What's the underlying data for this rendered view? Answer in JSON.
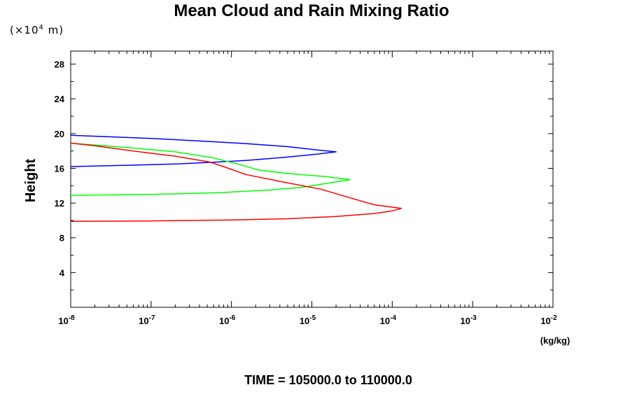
{
  "chart_data": {
    "type": "line",
    "title": "Mean Cloud and Rain Mixing Ratio",
    "y_unit": "(×10",
    "y_unit_exp": "4",
    "y_unit_tail": " m)",
    "ylabel": "Height",
    "x_unit": "(kg/kg)",
    "xscale": "log",
    "xlim_exp": [
      -8,
      -2
    ],
    "ylim": [
      0,
      29.5
    ],
    "y_ticks": [
      4,
      8,
      12,
      16,
      20,
      24,
      28
    ],
    "x_tick_exponents": [
      -8,
      -7,
      -6,
      -5,
      -4,
      -3,
      -2
    ],
    "x_tick_base": "10",
    "grid": false,
    "series": [
      {
        "color": "#0000ff",
        "points": [
          [
            1e-08,
            16.2
          ],
          [
            5e-08,
            16.35
          ],
          [
            2e-07,
            16.5
          ],
          [
            6e-07,
            16.7
          ],
          [
            1.5e-06,
            16.9
          ],
          [
            5e-06,
            17.3
          ],
          [
            1.2e-05,
            17.65
          ],
          [
            2e-05,
            17.9
          ],
          [
            1.2e-05,
            18.1
          ],
          [
            5e-06,
            18.5
          ],
          [
            1.5e-06,
            18.85
          ],
          [
            4e-07,
            19.15
          ],
          [
            1e-07,
            19.45
          ],
          [
            1e-08,
            19.8
          ]
        ]
      },
      {
        "color": "#00ff00",
        "points": [
          [
            1e-08,
            12.9
          ],
          [
            1e-07,
            13.0
          ],
          [
            7e-07,
            13.2
          ],
          [
            3e-06,
            13.5
          ],
          [
            8e-06,
            13.85
          ],
          [
            1.6e-05,
            14.3
          ],
          [
            3e-05,
            14.7
          ],
          [
            1.5e-05,
            15.05
          ],
          [
            5e-06,
            15.4
          ],
          [
            2.2e-06,
            15.8
          ],
          [
            1.2e-06,
            16.5
          ],
          [
            6e-07,
            17.2
          ],
          [
            2e-07,
            17.9
          ],
          [
            5e-08,
            18.4
          ],
          [
            1e-08,
            18.9
          ]
        ]
      },
      {
        "color": "#ff0000",
        "points": [
          [
            1e-08,
            9.9
          ],
          [
            1e-07,
            9.95
          ],
          [
            1e-06,
            10.05
          ],
          [
            5e-06,
            10.2
          ],
          [
            2e-05,
            10.45
          ],
          [
            6e-05,
            10.8
          ],
          [
            0.0001,
            11.1
          ],
          [
            0.00013,
            11.4
          ],
          [
            6e-05,
            11.8
          ],
          [
            3e-05,
            12.6
          ],
          [
            1.3e-05,
            13.6
          ],
          [
            4e-06,
            14.5
          ],
          [
            1.5e-06,
            15.3
          ],
          [
            8e-07,
            16.2
          ],
          [
            5.5e-07,
            16.7
          ],
          [
            2e-07,
            17.4
          ],
          [
            6e-08,
            18.0
          ],
          [
            2e-08,
            18.6
          ],
          [
            1e-08,
            18.9
          ]
        ]
      }
    ],
    "footer_prefix": "TIME = ",
    "time_start": "105000.0",
    "time_sep": " to ",
    "time_end": "110000.0"
  }
}
